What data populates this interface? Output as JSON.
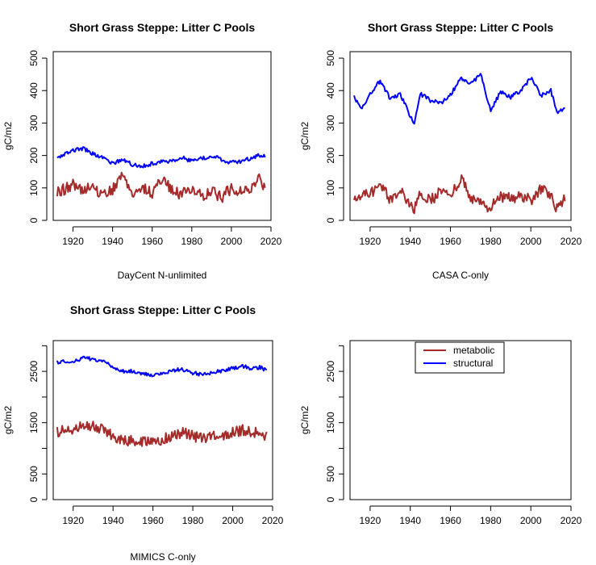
{
  "colors": {
    "metabolic": "#a52a2a",
    "structural": "#0000ff"
  },
  "chart_data": [
    {
      "type": "line",
      "title": "Short Grass Steppe: Litter C Pools",
      "xlabel": "DayCent N-unlimited",
      "ylabel": "gC/m2",
      "xlim": [
        1910,
        2020
      ],
      "ylim": [
        0,
        520
      ],
      "xticks": [
        "1920",
        "1940",
        "1960",
        "1980",
        "2000",
        "2020"
      ],
      "yticks": [
        "0",
        "100",
        "200",
        "300",
        "400",
        "500"
      ],
      "x": [
        1912,
        1920,
        1925,
        1930,
        1935,
        1940,
        1945,
        1950,
        1955,
        1960,
        1965,
        1970,
        1975,
        1980,
        1985,
        1990,
        1995,
        2000,
        2005,
        2010,
        2014,
        2017
      ],
      "series": [
        {
          "name": "structural",
          "color": "structural",
          "values": [
            193,
            215,
            222,
            205,
            192,
            175,
            188,
            172,
            168,
            175,
            180,
            185,
            195,
            182,
            190,
            200,
            188,
            178,
            182,
            192,
            202,
            198
          ]
        },
        {
          "name": "metabolic",
          "color": "metabolic",
          "values": [
            85,
            110,
            95,
            100,
            80,
            95,
            145,
            75,
            100,
            85,
            130,
            90,
            80,
            100,
            75,
            95,
            70,
            100,
            85,
            95,
            130,
            100
          ]
        }
      ]
    },
    {
      "type": "line",
      "title": "Short Grass Steppe: Litter C Pools",
      "xlabel": "CASA C-only",
      "ylabel": "gC/m2",
      "xlim": [
        1910,
        2020
      ],
      "ylim": [
        0,
        520
      ],
      "xticks": [
        "1920",
        "1940",
        "1960",
        "1980",
        "2000",
        "2020"
      ],
      "yticks": [
        "0",
        "100",
        "200",
        "300",
        "400",
        "500"
      ],
      "x": [
        1912,
        1916,
        1920,
        1925,
        1930,
        1935,
        1940,
        1942,
        1945,
        1950,
        1955,
        1960,
        1965,
        1970,
        1975,
        1980,
        1985,
        1990,
        1995,
        2000,
        2005,
        2010,
        2013,
        2017
      ],
      "series": [
        {
          "name": "structural",
          "color": "structural",
          "values": [
            380,
            345,
            390,
            430,
            375,
            390,
            320,
            300,
            390,
            370,
            360,
            385,
            440,
            420,
            450,
            340,
            395,
            380,
            400,
            440,
            385,
            400,
            330,
            350
          ]
        },
        {
          "name": "metabolic",
          "color": "metabolic",
          "values": [
            55,
            75,
            80,
            110,
            65,
            90,
            45,
            35,
            80,
            60,
            90,
            70,
            130,
            70,
            55,
            40,
            75,
            65,
            80,
            60,
            100,
            70,
            40,
            65
          ]
        }
      ]
    },
    {
      "type": "line",
      "title": "Short Grass Steppe: Litter C Pools",
      "xlabel": "MIMICS C-only",
      "ylabel": "gC/m2",
      "xlim": [
        1910,
        2020
      ],
      "ylim": [
        0,
        3100
      ],
      "xticks": [
        "1920",
        "1940",
        "1960",
        "1980",
        "2000",
        "2020"
      ],
      "yticks": [
        "0",
        "500",
        "1500",
        "2500"
      ],
      "x": [
        1912,
        1920,
        1925,
        1930,
        1935,
        1940,
        1945,
        1950,
        1955,
        1960,
        1965,
        1970,
        1975,
        1980,
        1985,
        1990,
        1995,
        2000,
        2005,
        2010,
        2014,
        2017
      ],
      "series": [
        {
          "name": "structural",
          "color": "structural",
          "values": [
            2680,
            2700,
            2760,
            2740,
            2700,
            2580,
            2500,
            2500,
            2460,
            2420,
            2470,
            2520,
            2540,
            2470,
            2440,
            2480,
            2520,
            2570,
            2600,
            2550,
            2580,
            2510
          ]
        },
        {
          "name": "metabolic",
          "color": "metabolic",
          "values": [
            1330,
            1340,
            1430,
            1420,
            1370,
            1250,
            1150,
            1170,
            1130,
            1100,
            1170,
            1250,
            1320,
            1250,
            1180,
            1220,
            1250,
            1300,
            1360,
            1290,
            1320,
            1230
          ]
        }
      ]
    },
    {
      "type": "line",
      "xlabel": "",
      "ylabel": "gC/m2",
      "xlim": [
        1910,
        2020
      ],
      "ylim": [
        0,
        3100
      ],
      "xticks": [
        "1920",
        "1940",
        "1960",
        "1980",
        "2000",
        "2020"
      ],
      "yticks": [
        "0",
        "500",
        "1500",
        "2500"
      ],
      "x": [],
      "series": [],
      "legend": {
        "position": "top-center",
        "entries": [
          {
            "label": "metabolic",
            "color": "metabolic"
          },
          {
            "label": "structural",
            "color": "structural"
          }
        ]
      }
    }
  ]
}
